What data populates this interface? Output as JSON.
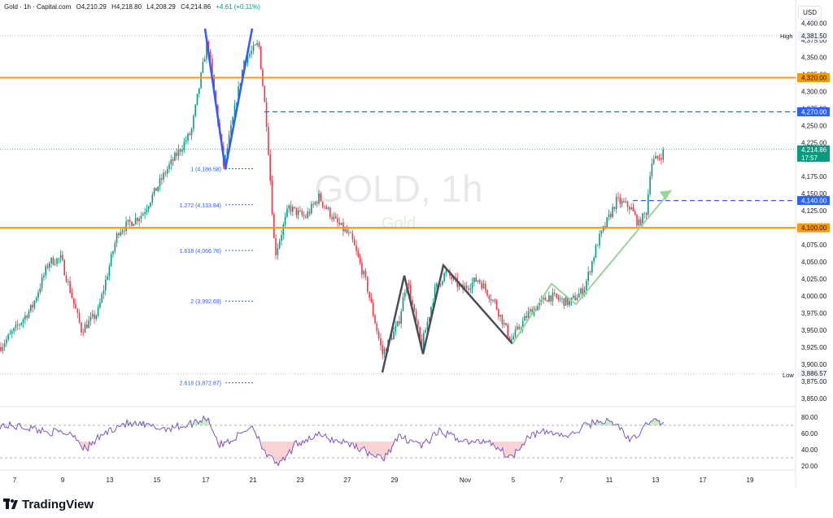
{
  "header": {
    "symbol": "Gold · 1h · Capital.com",
    "open": "O4,210.29",
    "high": "H4,218.80",
    "low": "L4,208.29",
    "close": "C4,214.86",
    "change": "+4.61 (+0.11%)"
  },
  "currency_button": "USD",
  "watermark": {
    "title": "GOLD, 1h",
    "subtitle": "Gold"
  },
  "brand": "TradingView",
  "colors": {
    "up": "#089981",
    "down": "#f23645",
    "level": "#ff9800",
    "dashed": "#2962ff",
    "pattern_blue": "#2f5bff",
    "rsi": "#7e57c2",
    "fib": "#2962ff"
  },
  "chart_data": {
    "type": "candlestick",
    "price_axis": {
      "ticks": [
        "4,400.00",
        "4,375.00",
        "4,350.00",
        "4,325.00",
        "4,300.00",
        "4,275.00",
        "4,250.00",
        "4,225.00",
        "4,200.00",
        "4,175.00",
        "4,150.00",
        "4,125.00",
        "4,100.00",
        "4,075.00",
        "4,050.00",
        "4,025.00",
        "4,000.00",
        "3,975.00",
        "3,950.00",
        "3,925.00",
        "3,900.00",
        "3,875.00",
        "3,850.00"
      ],
      "range": [
        3838,
        4416
      ]
    },
    "time_axis": {
      "labels": [
        "7",
        "9",
        "13",
        "15",
        "17",
        "21",
        "23",
        "27",
        "29",
        "Nov",
        "5",
        "7",
        "11",
        "13",
        "17",
        "19"
      ]
    },
    "labels": {
      "high": {
        "text": "High",
        "value": "4,381.50"
      },
      "low": {
        "text": "Low",
        "value": "3,886.57"
      },
      "current": {
        "value": "4,214.86",
        "countdown": "17:57"
      }
    },
    "levels": [
      {
        "price": 4320,
        "label": "4,320.00",
        "style": "solid"
      },
      {
        "price": 4100,
        "label": "4,100.00",
        "style": "solid"
      },
      {
        "price": 4270,
        "label": "4,270.00",
        "style": "dashed"
      },
      {
        "price": 4140,
        "label": "4,140.00",
        "style": "dashed"
      }
    ],
    "fibonacci": [
      {
        "label": "1 (4,186.58)",
        "price": 4186.58
      },
      {
        "label": "1.272 (4,133.84)",
        "price": 4133.84
      },
      {
        "label": "1.618 (4,066.76)",
        "price": 4066.76
      },
      {
        "label": "2 (3,992.69)",
        "price": 3992.69
      },
      {
        "label": "2.618 (3,872.87)",
        "price": 3872.87
      }
    ],
    "rsi": {
      "ticks": [
        "80.00",
        "60.00",
        "40.00",
        "20.00"
      ],
      "range": [
        15,
        90
      ],
      "upper": 70,
      "lower": 30
    }
  }
}
